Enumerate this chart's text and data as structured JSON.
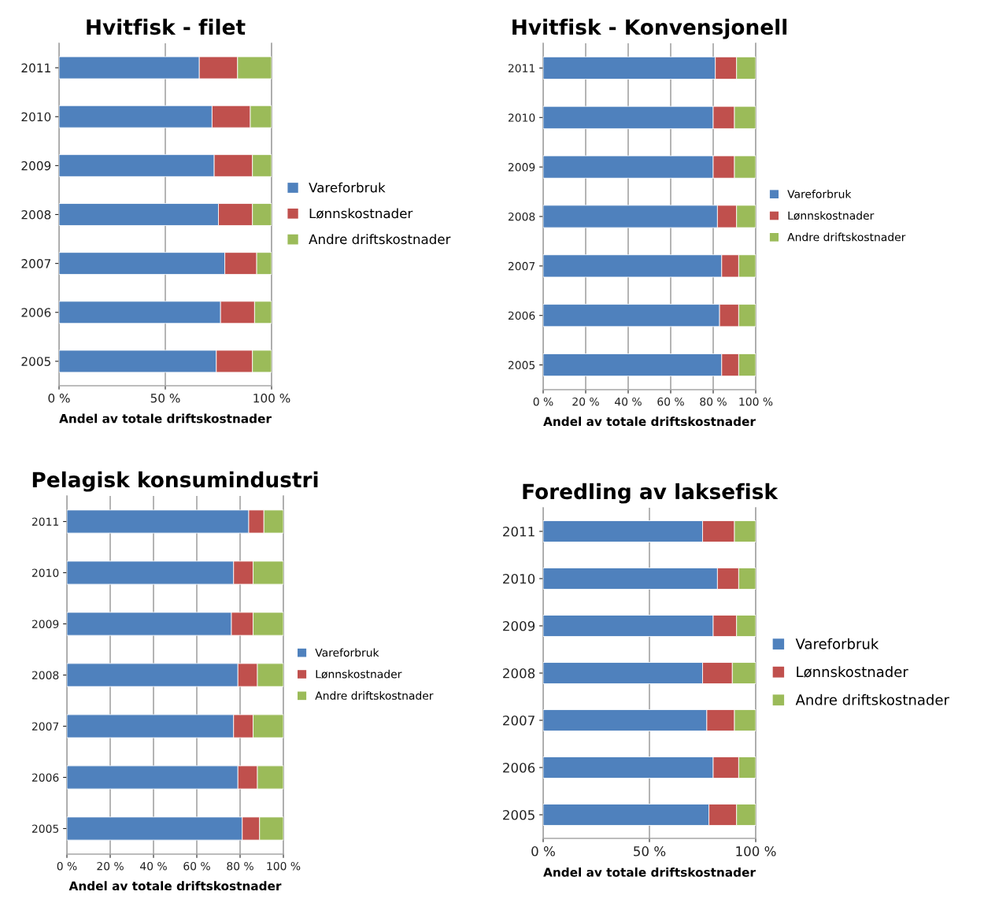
{
  "chart_data": [
    {
      "type": "bar",
      "orientation": "horizontal",
      "stacked": true,
      "title": "Hvitfisk - filet",
      "xlabel": "Andel av totale driftskostnader",
      "categories": [
        "2011",
        "2010",
        "2009",
        "2008",
        "2007",
        "2006",
        "2005"
      ],
      "xlim": [
        0,
        100
      ],
      "xticks": [
        {
          "value": 0,
          "label": "0 %"
        },
        {
          "value": 50,
          "label": "50 %"
        },
        {
          "value": 100,
          "label": "100 %"
        }
      ],
      "grid": "x",
      "legend": "right",
      "series": [
        {
          "name": "Vareforbruk",
          "color": "#4f81bd",
          "values": [
            66,
            72,
            73,
            75,
            78,
            76,
            74
          ]
        },
        {
          "name": "Lønnskostnader",
          "color": "#c0504d",
          "values": [
            18,
            18,
            18,
            16,
            15,
            16,
            17
          ]
        },
        {
          "name": "Andre driftskostnader",
          "color": "#9bbb59",
          "values": [
            16,
            10,
            9,
            9,
            7,
            8,
            9
          ]
        }
      ]
    },
    {
      "type": "bar",
      "orientation": "horizontal",
      "stacked": true,
      "title": "Hvitfisk - Konvensjonell",
      "xlabel": "Andel av totale driftskostnader",
      "categories": [
        "2011",
        "2010",
        "2009",
        "2008",
        "2007",
        "2006",
        "2005"
      ],
      "xlim": [
        0,
        100
      ],
      "xticks": [
        {
          "value": 0,
          "label": "0 %"
        },
        {
          "value": 20,
          "label": "20 %"
        },
        {
          "value": 40,
          "label": "40 %"
        },
        {
          "value": 60,
          "label": "60 %"
        },
        {
          "value": 80,
          "label": "80 %"
        },
        {
          "value": 100,
          "label": "100 %"
        }
      ],
      "grid": "x",
      "legend": "right",
      "series": [
        {
          "name": "Vareforbruk",
          "color": "#4f81bd",
          "values": [
            81,
            80,
            80,
            82,
            84,
            83,
            84
          ]
        },
        {
          "name": "Lønnskostnader",
          "color": "#c0504d",
          "values": [
            10,
            10,
            10,
            9,
            8,
            9,
            8
          ]
        },
        {
          "name": "Andre driftskostnader",
          "color": "#9bbb59",
          "values": [
            9,
            10,
            10,
            9,
            8,
            8,
            8
          ]
        }
      ]
    },
    {
      "type": "bar",
      "orientation": "horizontal",
      "stacked": true,
      "title": "Pelagisk konsumindustri",
      "xlabel": "Andel av totale driftskostnader",
      "categories": [
        "2011",
        "2010",
        "2009",
        "2008",
        "2007",
        "2006",
        "2005"
      ],
      "xlim": [
        0,
        100
      ],
      "xticks": [
        {
          "value": 0,
          "label": "0 %"
        },
        {
          "value": 20,
          "label": "20 %"
        },
        {
          "value": 40,
          "label": "40 %"
        },
        {
          "value": 60,
          "label": "60 %"
        },
        {
          "value": 80,
          "label": "80 %"
        },
        {
          "value": 100,
          "label": "100 %"
        }
      ],
      "grid": "x",
      "legend": "right",
      "series": [
        {
          "name": "Vareforbruk",
          "color": "#4f81bd",
          "values": [
            84,
            77,
            76,
            79,
            77,
            79,
            81
          ]
        },
        {
          "name": "Lønnskostnader",
          "color": "#c0504d",
          "values": [
            7,
            9,
            10,
            9,
            9,
            9,
            8
          ]
        },
        {
          "name": "Andre driftskostnader",
          "color": "#9bbb59",
          "values": [
            9,
            14,
            14,
            12,
            14,
            12,
            11
          ]
        }
      ]
    },
    {
      "type": "bar",
      "orientation": "horizontal",
      "stacked": true,
      "title": "Foredling av laksefisk",
      "xlabel": "Andel av totale driftskostnader",
      "categories": [
        "2011",
        "2010",
        "2009",
        "2008",
        "2007",
        "2006",
        "2005"
      ],
      "xlim": [
        0,
        100
      ],
      "xticks": [
        {
          "value": 0,
          "label": "0 %"
        },
        {
          "value": 50,
          "label": "50 %"
        },
        {
          "value": 100,
          "label": "100 %"
        }
      ],
      "grid": "x",
      "legend": "right",
      "series": [
        {
          "name": "Vareforbruk",
          "color": "#4f81bd",
          "values": [
            75,
            82,
            80,
            75,
            77,
            80,
            78
          ]
        },
        {
          "name": "Lønnskostnader",
          "color": "#c0504d",
          "values": [
            15,
            10,
            11,
            14,
            13,
            12,
            13
          ]
        },
        {
          "name": "Andre driftskostnader",
          "color": "#9bbb59",
          "values": [
            10,
            8,
            9,
            11,
            10,
            8,
            9
          ]
        }
      ]
    }
  ]
}
